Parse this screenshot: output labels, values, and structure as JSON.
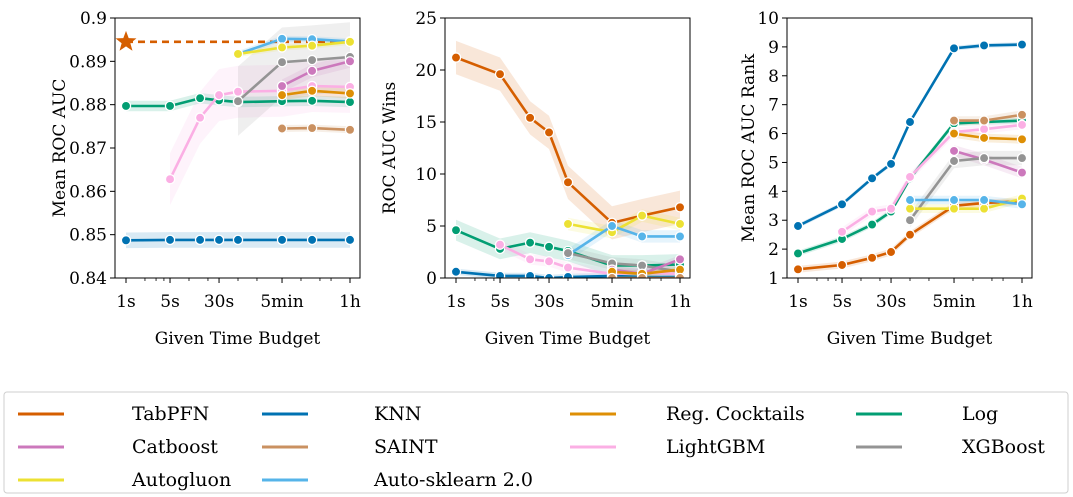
{
  "chart_data": [
    {
      "type": "line",
      "ylabel": "Mean ROC AUC",
      "xlabel": "Given Time Budget",
      "x_tick_labels": [
        "1s",
        "5s",
        "30s",
        "5min",
        "1h"
      ],
      "x_tick_values": [
        1,
        5,
        30,
        300,
        3600
      ],
      "x_scale": "log",
      "ylim": [
        0.84,
        0.9
      ],
      "y_ticks": [
        0.84,
        0.85,
        0.86,
        0.87,
        0.88,
        0.89,
        0.9
      ],
      "y_tick_labels": [
        "0.84",
        "0.85",
        "0.86",
        "0.87",
        "0.88",
        "0.89",
        "0.9"
      ],
      "tabpfn_reference": {
        "y": 0.8945,
        "x_start": 1,
        "x_end": 3600,
        "marker": "star"
      },
      "series": [
        {
          "name": "KNN",
          "x": [
            1,
            5,
            15,
            30,
            60,
            300,
            900,
            3600
          ],
          "y": [
            0.8487,
            0.8488,
            0.8488,
            0.8488,
            0.8488,
            0.8488,
            0.8488,
            0.8488
          ],
          "band": 0.0018
        },
        {
          "name": "Log",
          "x": [
            1,
            5,
            15,
            30,
            60,
            300,
            900,
            3600
          ],
          "y": [
            0.8797,
            0.8797,
            0.8815,
            0.881,
            0.8806,
            0.8808,
            0.8809,
            0.8806
          ],
          "band": 0.0012
        },
        {
          "name": "LightGBM",
          "x": [
            5,
            15,
            30,
            60,
            300,
            900,
            3600
          ],
          "y": [
            0.8628,
            0.877,
            0.8822,
            0.883,
            0.8832,
            0.8843,
            0.8841
          ],
          "band": 0.006
        },
        {
          "name": "XGBoost",
          "x": [
            60,
            300,
            900,
            3600
          ],
          "y": [
            0.8808,
            0.8898,
            0.8903,
            0.891
          ],
          "band": 0.008
        },
        {
          "name": "Auto-sklearn 2.0",
          "x": [
            60,
            300,
            900,
            3600
          ],
          "y": [
            0.8917,
            0.8952,
            0.8951,
            0.8946
          ],
          "band": 0.0007
        },
        {
          "name": "Autogluon",
          "x": [
            60,
            300,
            900,
            3600
          ],
          "y": [
            0.8917,
            0.8932,
            0.8936,
            0.8945
          ],
          "band": 0.0007
        },
        {
          "name": "Catboost",
          "x": [
            300,
            900,
            3600
          ],
          "y": [
            0.8843,
            0.8878,
            0.89
          ],
          "band": 0.0015
        },
        {
          "name": "Reg. Cocktails",
          "x": [
            300,
            900,
            3600
          ],
          "y": [
            0.8822,
            0.8832,
            0.8826
          ],
          "band": 0.0012
        },
        {
          "name": "SAINT",
          "x": [
            300,
            900,
            3600
          ],
          "y": [
            0.8745,
            0.8746,
            0.8742
          ],
          "band": 0.0008
        }
      ]
    },
    {
      "type": "line",
      "ylabel": "ROC AUC Wins",
      "xlabel": "Given Time Budget",
      "x_tick_labels": [
        "1s",
        "5s",
        "30s",
        "5min",
        "1h"
      ],
      "x_tick_values": [
        1,
        5,
        30,
        300,
        3600
      ],
      "x_scale": "log",
      "ylim": [
        0,
        25
      ],
      "y_ticks": [
        0,
        5,
        10,
        15,
        20,
        25
      ],
      "y_tick_labels": [
        "0",
        "5",
        "10",
        "15",
        "20",
        "25"
      ],
      "series": [
        {
          "name": "TabPFN",
          "x": [
            1,
            5,
            15,
            30,
            60,
            300,
            900,
            3600
          ],
          "y": [
            21.2,
            19.6,
            15.4,
            14.0,
            9.2,
            5.3,
            6.0,
            6.8
          ],
          "band": 1.6
        },
        {
          "name": "Log",
          "x": [
            1,
            5,
            15,
            30,
            60,
            300,
            900,
            3600
          ],
          "y": [
            4.6,
            2.8,
            3.4,
            3.0,
            2.6,
            1.2,
            1.2,
            1.3
          ],
          "band": 1.0
        },
        {
          "name": "KNN",
          "x": [
            1,
            5,
            15,
            30,
            60,
            300,
            900,
            3600
          ],
          "y": [
            0.6,
            0.2,
            0.2,
            0.0,
            0.1,
            0.2,
            0.1,
            0.1
          ],
          "band": 0.3
        },
        {
          "name": "LightGBM",
          "x": [
            5,
            15,
            30,
            60,
            300,
            900,
            3600
          ],
          "y": [
            3.2,
            1.8,
            1.6,
            1.0,
            0.4,
            0.5,
            0.4
          ],
          "band": 0.5
        },
        {
          "name": "Autogluon",
          "x": [
            60,
            300,
            900,
            3600
          ],
          "y": [
            5.2,
            4.4,
            6.0,
            5.2
          ],
          "band": 0.6
        },
        {
          "name": "Auto-sklearn 2.0",
          "x": [
            60,
            300,
            900,
            3600
          ],
          "y": [
            2.2,
            5.0,
            4.0,
            4.0
          ],
          "band": 0.6
        },
        {
          "name": "XGBoost",
          "x": [
            60,
            300,
            900,
            3600
          ],
          "y": [
            2.4,
            1.4,
            1.2,
            0.6
          ],
          "band": 0.6
        },
        {
          "name": "Catboost",
          "x": [
            300,
            900,
            3600
          ],
          "y": [
            0.8,
            0.4,
            1.8
          ],
          "band": 0.4
        },
        {
          "name": "Reg. Cocktails",
          "x": [
            300,
            900,
            3600
          ],
          "y": [
            0.6,
            0.4,
            0.8
          ],
          "band": 0.3
        },
        {
          "name": "SAINT",
          "x": [
            300,
            900,
            3600
          ],
          "y": [
            0.0,
            0.0,
            0.0
          ],
          "band": 0.1
        }
      ]
    },
    {
      "type": "line",
      "ylabel": "Mean ROC AUC Rank",
      "xlabel": "Given Time Budget",
      "x_tick_labels": [
        "1s",
        "5s",
        "30s",
        "5min",
        "1h"
      ],
      "x_tick_values": [
        1,
        5,
        30,
        300,
        3600
      ],
      "x_scale": "log",
      "ylim": [
        1,
        10
      ],
      "y_ticks": [
        1,
        2,
        3,
        4,
        5,
        6,
        7,
        8,
        9,
        10
      ],
      "y_tick_labels": [
        "1",
        "2",
        "3",
        "4",
        "5",
        "6",
        "7",
        "8",
        "9",
        "10"
      ],
      "series": [
        {
          "name": "KNN",
          "x": [
            1,
            5,
            15,
            30,
            60,
            300,
            900,
            3600
          ],
          "y": [
            2.8,
            3.55,
            4.45,
            4.95,
            6.4,
            8.95,
            9.05,
            9.08
          ],
          "band": 0.08
        },
        {
          "name": "Log",
          "x": [
            1,
            5,
            15,
            30,
            60,
            300,
            900,
            3600
          ],
          "y": [
            1.85,
            2.35,
            2.85,
            3.3,
            4.45,
            6.35,
            6.4,
            6.45
          ],
          "band": 0.1
        },
        {
          "name": "TabPFN",
          "x": [
            1,
            5,
            15,
            30,
            60,
            300,
            900,
            3600
          ],
          "y": [
            1.3,
            1.45,
            1.7,
            1.9,
            2.5,
            3.5,
            3.6,
            3.65
          ],
          "band": 0.12
        },
        {
          "name": "LightGBM",
          "x": [
            5,
            15,
            30,
            60,
            300,
            900,
            3600
          ],
          "y": [
            2.6,
            3.3,
            3.4,
            4.5,
            6.05,
            6.15,
            6.3
          ],
          "band": 0.15
        },
        {
          "name": "Catboost",
          "x": [
            300,
            900,
            3600
          ],
          "y": [
            5.4,
            5.1,
            4.65
          ],
          "band": 0.2
        },
        {
          "name": "Reg. Cocktails",
          "x": [
            300,
            900,
            3600
          ],
          "y": [
            6.0,
            5.85,
            5.8
          ],
          "band": 0.15
        },
        {
          "name": "SAINT",
          "x": [
            300,
            900,
            3600
          ],
          "y": [
            6.45,
            6.45,
            6.65
          ],
          "band": 0.15
        },
        {
          "name": "XGBoost",
          "x": [
            60,
            300,
            900,
            3600
          ],
          "y": [
            3.0,
            5.05,
            5.15,
            5.15
          ],
          "band": 0.25
        },
        {
          "name": "Autogluon",
          "x": [
            60,
            300,
            900,
            3600
          ],
          "y": [
            3.4,
            3.4,
            3.4,
            3.75
          ],
          "band": 0.15
        },
        {
          "name": "Auto-sklearn 2.0",
          "x": [
            60,
            300,
            900,
            3600
          ],
          "y": [
            3.7,
            3.7,
            3.7,
            3.55
          ],
          "band": 0.15
        }
      ]
    }
  ],
  "legend": {
    "placement": "bottom",
    "entries": [
      {
        "name": "TabPFN",
        "color": "#D55E00"
      },
      {
        "name": "KNN",
        "color": "#0072B2"
      },
      {
        "name": "Reg. Cocktails",
        "color": "#DE8F05"
      },
      {
        "name": "Log",
        "color": "#029E73"
      },
      {
        "name": "Catboost",
        "color": "#CC78BC"
      },
      {
        "name": "SAINT",
        "color": "#CA9161"
      },
      {
        "name": "LightGBM",
        "color": "#FBAFE4"
      },
      {
        "name": "XGBoost",
        "color": "#949494"
      },
      {
        "name": "Autogluon",
        "color": "#ECE133"
      },
      {
        "name": "Auto-sklearn 2.0",
        "color": "#56B4E9"
      }
    ]
  }
}
